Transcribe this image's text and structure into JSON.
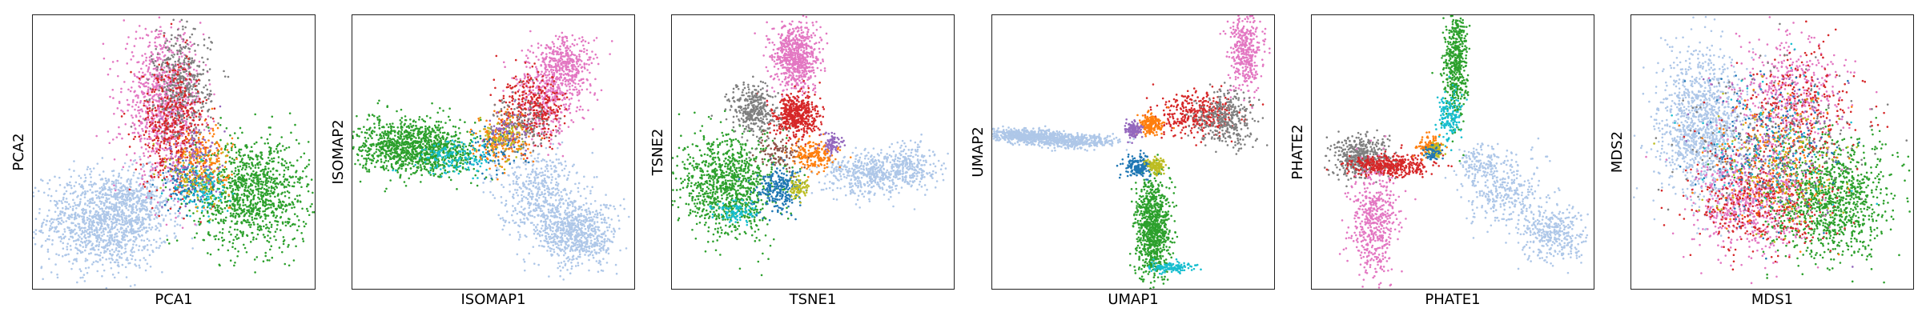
{
  "figure": {
    "panel_count": 6
  },
  "chart_data": [
    {
      "type": "scatter",
      "title": "",
      "xlabel": "PCA1",
      "ylabel": "PCA2",
      "xlim": [
        0,
        1
      ],
      "ylim": [
        0,
        1
      ],
      "grid": false,
      "ticks": false,
      "legend": "none",
      "series": [
        {
          "color": "#aec7e8",
          "clusters": [
            [
              0.26,
              0.25,
              0.11,
              0.09,
              1300
            ],
            [
              0.38,
              0.33,
              0.06,
              0.05,
              200
            ]
          ]
        },
        {
          "color": "#2ca02c",
          "clusters": [
            [
              0.78,
              0.35,
              0.1,
              0.1,
              1100
            ]
          ]
        },
        {
          "color": "#e377c2",
          "clusters": [
            [
              0.46,
              0.68,
              0.07,
              0.13,
              900
            ]
          ]
        },
        {
          "color": "#7f7f7f",
          "clusters": [
            [
              0.53,
              0.74,
              0.05,
              0.1,
              450
            ]
          ]
        },
        {
          "color": "#d62728",
          "clusters": [
            [
              0.5,
              0.6,
              0.06,
              0.12,
              450
            ]
          ]
        },
        {
          "color": "#ff7f0e",
          "clusters": [
            [
              0.6,
              0.46,
              0.05,
              0.06,
              220
            ]
          ]
        },
        {
          "color": "#1f77b4",
          "clusters": [
            [
              0.55,
              0.38,
              0.04,
              0.04,
              120
            ]
          ]
        },
        {
          "color": "#9467bd",
          "clusters": [
            [
              0.58,
              0.46,
              0.05,
              0.08,
              120
            ]
          ]
        },
        {
          "color": "#bcbd22",
          "clusters": [
            [
              0.59,
              0.4,
              0.05,
              0.06,
              100
            ]
          ]
        },
        {
          "color": "#17becf",
          "clusters": [
            [
              0.6,
              0.36,
              0.05,
              0.05,
              100
            ]
          ]
        }
      ]
    },
    {
      "type": "scatter",
      "title": "",
      "xlabel": "ISOMAP1",
      "ylabel": "ISOMAP2",
      "xlim": [
        0,
        1
      ],
      "ylim": [
        0,
        1
      ],
      "grid": false,
      "ticks": false,
      "legend": "none",
      "series": [
        {
          "color": "#aec7e8",
          "clusters": [
            [
              0.66,
              0.35,
              0.07,
              0.08,
              500
            ],
            [
              0.8,
              0.2,
              0.07,
              0.06,
              700
            ]
          ]
        },
        {
          "color": "#2ca02c",
          "clusters": [
            [
              0.2,
              0.52,
              0.09,
              0.05,
              1000
            ],
            [
              0.35,
              0.5,
              0.06,
              0.04,
              200
            ]
          ]
        },
        {
          "color": "#17becf",
          "clusters": [
            [
              0.37,
              0.48,
              0.07,
              0.03,
              160
            ]
          ]
        },
        {
          "color": "#e377c2",
          "clusters": [
            [
              0.7,
              0.72,
              0.06,
              0.08,
              450
            ],
            [
              0.76,
              0.82,
              0.05,
              0.05,
              300
            ]
          ]
        },
        {
          "color": "#d62728",
          "clusters": [
            [
              0.64,
              0.66,
              0.06,
              0.06,
              350
            ]
          ]
        },
        {
          "color": "#7f7f7f",
          "clusters": [
            [
              0.6,
              0.6,
              0.05,
              0.05,
              150
            ]
          ]
        },
        {
          "color": "#ff7f0e",
          "clusters": [
            [
              0.53,
              0.54,
              0.05,
              0.05,
              180
            ]
          ]
        },
        {
          "color": "#1f77b4",
          "clusters": [
            [
              0.5,
              0.5,
              0.05,
              0.04,
              80
            ]
          ]
        },
        {
          "color": "#bcbd22",
          "clusters": [
            [
              0.54,
              0.56,
              0.04,
              0.04,
              80
            ]
          ]
        },
        {
          "color": "#9467bd",
          "clusters": [
            [
              0.55,
              0.58,
              0.04,
              0.04,
              60
            ]
          ]
        }
      ]
    },
    {
      "type": "scatter",
      "title": "",
      "xlabel": "TSNE1",
      "ylabel": "TSNE2",
      "xlim": [
        0,
        1
      ],
      "ylim": [
        0,
        1
      ],
      "grid": false,
      "ticks": false,
      "legend": "none",
      "series": [
        {
          "color": "#aec7e8",
          "clusters": [
            [
              0.7,
              0.42,
              0.08,
              0.04,
              450
            ],
            [
              0.84,
              0.45,
              0.05,
              0.04,
              250
            ]
          ]
        },
        {
          "color": "#2ca02c",
          "clusters": [
            [
              0.2,
              0.38,
              0.09,
              0.09,
              1000
            ]
          ]
        },
        {
          "color": "#17becf",
          "clusters": [
            [
              0.23,
              0.28,
              0.04,
              0.02,
              100
            ]
          ]
        },
        {
          "color": "#e377c2",
          "clusters": [
            [
              0.44,
              0.85,
              0.04,
              0.06,
              700
            ]
          ]
        },
        {
          "color": "#d62728",
          "clusters": [
            [
              0.44,
              0.63,
              0.04,
              0.04,
              500
            ]
          ]
        },
        {
          "color": "#7f7f7f",
          "clusters": [
            [
              0.29,
              0.65,
              0.04,
              0.05,
              350
            ]
          ]
        },
        {
          "color": "#1f77b4",
          "clusters": [
            [
              0.38,
              0.36,
              0.04,
              0.04,
              250
            ]
          ]
        },
        {
          "color": "#ff7f0e",
          "clusters": [
            [
              0.5,
              0.49,
              0.04,
              0.03,
              200
            ]
          ]
        },
        {
          "color": "#9467bd",
          "clusters": [
            [
              0.57,
              0.53,
              0.02,
              0.02,
              80
            ]
          ]
        },
        {
          "color": "#bcbd22",
          "clusters": [
            [
              0.45,
              0.37,
              0.02,
              0.02,
              80
            ]
          ]
        },
        {
          "color": "#8c564b",
          "clusters": [
            [
              0.38,
              0.5,
              0.04,
              0.03,
              90
            ]
          ]
        }
      ]
    },
    {
      "type": "scatter",
      "title": "",
      "xlabel": "UMAP1",
      "ylabel": "UMAP2",
      "xlim": [
        0,
        1
      ],
      "ylim": [
        0,
        1
      ],
      "grid": false,
      "ticks": false,
      "legend": "none",
      "series": [
        {
          "color": "#aec7e8",
          "clusters": [
            [
              0.12,
              0.56,
              0.07,
              0.012,
              500
            ],
            [
              0.28,
              0.54,
              0.08,
              0.012,
              450
            ]
          ]
        },
        {
          "color": "#2ca02c",
          "clusters": [
            [
              0.57,
              0.22,
              0.03,
              0.09,
              900
            ]
          ]
        },
        {
          "color": "#17becf",
          "clusters": [
            [
              0.64,
              0.08,
              0.04,
              0.01,
              120
            ]
          ]
        },
        {
          "color": "#e377c2",
          "clusters": [
            [
              0.9,
              0.87,
              0.03,
              0.07,
              400
            ]
          ]
        },
        {
          "color": "#d62728",
          "clusters": [
            [
              0.72,
              0.64,
              0.07,
              0.04,
              380
            ]
          ]
        },
        {
          "color": "#7f7f7f",
          "clusters": [
            [
              0.83,
              0.62,
              0.05,
              0.05,
              350
            ]
          ]
        },
        {
          "color": "#ff7f0e",
          "clusters": [
            [
              0.56,
              0.6,
              0.02,
              0.02,
              180
            ]
          ]
        },
        {
          "color": "#9467bd",
          "clusters": [
            [
              0.5,
              0.58,
              0.015,
              0.015,
              120
            ]
          ]
        },
        {
          "color": "#1f77b4",
          "clusters": [
            [
              0.52,
              0.45,
              0.025,
              0.02,
              180
            ]
          ]
        },
        {
          "color": "#bcbd22",
          "clusters": [
            [
              0.58,
              0.45,
              0.015,
              0.015,
              120
            ]
          ]
        }
      ]
    },
    {
      "type": "scatter",
      "title": "",
      "xlabel": "PHATE1",
      "ylabel": "PHATE2",
      "xlim": [
        0,
        1
      ],
      "ylim": [
        0,
        1
      ],
      "grid": false,
      "ticks": false,
      "legend": "none",
      "series": [
        {
          "color": "#aec7e8",
          "clusters": [
            [
              0.68,
              0.35,
              0.07,
              0.07,
              300
            ],
            [
              0.86,
              0.2,
              0.06,
              0.05,
              350
            ],
            [
              0.6,
              0.45,
              0.04,
              0.04,
              150
            ]
          ]
        },
        {
          "color": "#2ca02c",
          "clusters": [
            [
              0.51,
              0.82,
              0.02,
              0.1,
              500
            ]
          ]
        },
        {
          "color": "#17becf",
          "clusters": [
            [
              0.49,
              0.62,
              0.02,
              0.05,
              150
            ]
          ]
        },
        {
          "color": "#7f7f7f",
          "clusters": [
            [
              0.17,
              0.48,
              0.05,
              0.04,
              450
            ]
          ]
        },
        {
          "color": "#d62728",
          "clusters": [
            [
              0.28,
              0.45,
              0.07,
              0.02,
              400
            ]
          ]
        },
        {
          "color": "#e377c2",
          "clusters": [
            [
              0.22,
              0.24,
              0.04,
              0.1,
              500
            ]
          ]
        },
        {
          "color": "#ff7f0e",
          "clusters": [
            [
              0.42,
              0.52,
              0.02,
              0.02,
              100
            ]
          ]
        },
        {
          "color": "#bcbd22",
          "clusters": [
            [
              0.44,
              0.51,
              0.015,
              0.015,
              60
            ]
          ]
        },
        {
          "color": "#1f77b4",
          "clusters": [
            [
              0.43,
              0.5,
              0.015,
              0.015,
              50
            ]
          ]
        }
      ]
    },
    {
      "type": "scatter",
      "title": "",
      "xlabel": "MDS1",
      "ylabel": "MDS2",
      "xlim": [
        0,
        1
      ],
      "ylim": [
        0,
        1
      ],
      "grid": false,
      "ticks": false,
      "legend": "none",
      "series": [
        {
          "color": "#aec7e8",
          "clusters": [
            [
              0.25,
              0.6,
              0.08,
              0.13,
              1200
            ]
          ]
        },
        {
          "color": "#2ca02c",
          "clusters": [
            [
              0.7,
              0.33,
              0.11,
              0.11,
              1100
            ]
          ]
        },
        {
          "color": "#e377c2",
          "clusters": [
            [
              0.42,
              0.32,
              0.1,
              0.1,
              600
            ],
            [
              0.57,
              0.72,
              0.1,
              0.1,
              400
            ]
          ]
        },
        {
          "color": "#d62728",
          "clusters": [
            [
              0.46,
              0.33,
              0.12,
              0.11,
              400
            ],
            [
              0.6,
              0.67,
              0.1,
              0.1,
              250
            ]
          ]
        },
        {
          "color": "#7f7f7f",
          "clusters": [
            [
              0.5,
              0.5,
              0.14,
              0.13,
              300
            ]
          ]
        },
        {
          "color": "#ff7f0e",
          "clusters": [
            [
              0.5,
              0.45,
              0.12,
              0.12,
              200
            ]
          ]
        },
        {
          "color": "#1f77b4",
          "clusters": [
            [
              0.48,
              0.5,
              0.13,
              0.13,
              150
            ]
          ]
        },
        {
          "color": "#9467bd",
          "clusters": [
            [
              0.52,
              0.5,
              0.13,
              0.13,
              120
            ]
          ]
        },
        {
          "color": "#bcbd22",
          "clusters": [
            [
              0.55,
              0.45,
              0.12,
              0.12,
              120
            ]
          ]
        },
        {
          "color": "#17becf",
          "clusters": [
            [
              0.5,
              0.55,
              0.13,
              0.13,
              100
            ]
          ]
        }
      ]
    }
  ]
}
